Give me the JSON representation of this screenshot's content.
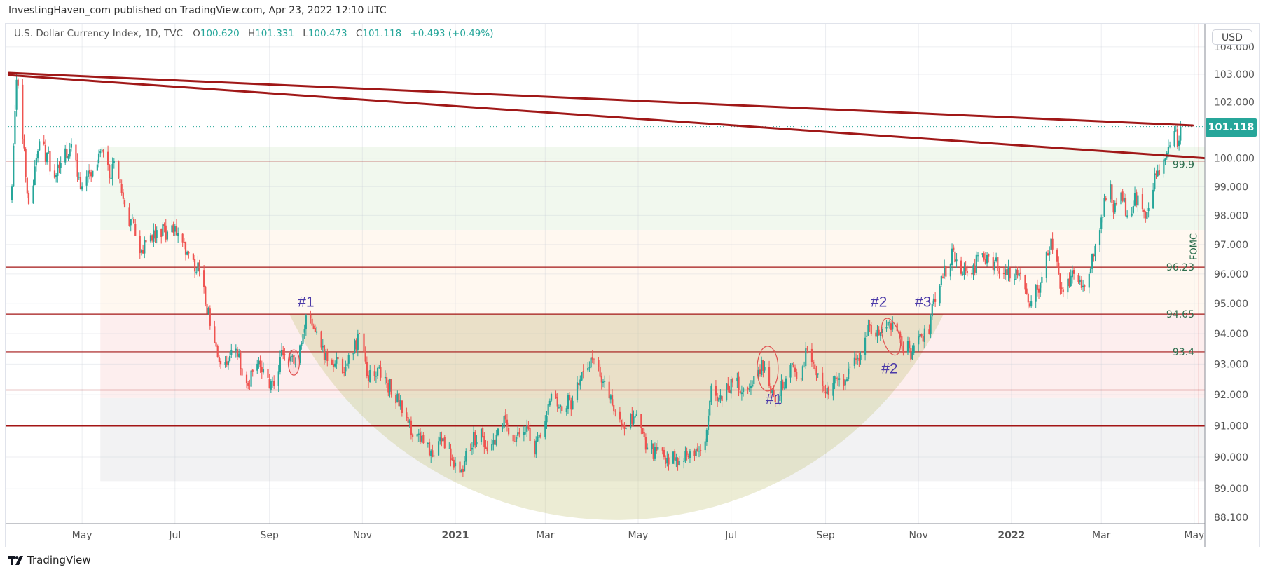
{
  "header": {
    "published": "InvestingHaven_com published on TradingView.com, Apr 23, 2022 12:10 UTC"
  },
  "legend": {
    "symbol": "U.S. Dollar Currency Index, 1D, TVC",
    "o_key": "O",
    "o": "100.620",
    "h_key": "H",
    "h": "101.331",
    "l_key": "L",
    "l": "100.473",
    "c_key": "C",
    "c": "101.118",
    "change": "+0.493 (+0.49%)"
  },
  "price_axis": {
    "currency_button": "USD",
    "last_price_label": "101.118"
  },
  "footer": {
    "brand": "TradingView"
  },
  "colors": {
    "up": "#26a69a",
    "down": "#ef5350",
    "level": "#a31515",
    "trend": "#a01818",
    "annotation": "#4b3aa8",
    "level_text": "#2e6e4e"
  },
  "chart_data": {
    "type": "candlestick",
    "title": "U.S. Dollar Currency Index, 1D, TVC",
    "scale": "log",
    "ylim": [
      88.1,
      104.0
    ],
    "xlim": [
      "2020-03-14",
      "2022-05-10"
    ],
    "y_ticks": [
      {
        "value": 104,
        "label": "104.000"
      },
      {
        "value": 103,
        "label": "103.000"
      },
      {
        "value": 102,
        "label": "102.000"
      },
      {
        "value": 100,
        "label": "100.000"
      },
      {
        "value": 99,
        "label": "99.000"
      },
      {
        "value": 98,
        "label": "98.000"
      },
      {
        "value": 97,
        "label": "97.000"
      },
      {
        "value": 96,
        "label": "96.000"
      },
      {
        "value": 95,
        "label": "95.000"
      },
      {
        "value": 94,
        "label": "94.000"
      },
      {
        "value": 93,
        "label": "93.000"
      },
      {
        "value": 92,
        "label": "92.000"
      },
      {
        "value": 91,
        "label": "91.000"
      },
      {
        "value": 90,
        "label": "90.000"
      },
      {
        "value": 89,
        "label": "89.000"
      },
      {
        "value": 88.1,
        "label": "88.100"
      }
    ],
    "x_ticks": [
      {
        "date": "2020-05-01",
        "label": "May",
        "bold": false
      },
      {
        "date": "2020-07-01",
        "label": "Jul",
        "bold": false
      },
      {
        "date": "2020-09-01",
        "label": "Sep",
        "bold": false
      },
      {
        "date": "2020-11-01",
        "label": "Nov",
        "bold": false
      },
      {
        "date": "2021-01-01",
        "label": "2021",
        "bold": true
      },
      {
        "date": "2021-03-01",
        "label": "Mar",
        "bold": false
      },
      {
        "date": "2021-05-01",
        "label": "May",
        "bold": false
      },
      {
        "date": "2021-07-01",
        "label": "Jul",
        "bold": false
      },
      {
        "date": "2021-09-01",
        "label": "Sep",
        "bold": false
      },
      {
        "date": "2021-11-01",
        "label": "Nov",
        "bold": false
      },
      {
        "date": "2022-01-01",
        "label": "2022",
        "bold": true
      },
      {
        "date": "2022-03-01",
        "label": "Mar",
        "bold": false
      },
      {
        "date": "2022-05-01",
        "label": "May",
        "bold": false
      }
    ],
    "last": {
      "date": "2022-04-22",
      "open": 100.62,
      "high": 101.331,
      "low": 100.473,
      "close": 101.118
    },
    "close_path": [
      [
        "2020-03-16",
        99.0
      ],
      [
        "2020-03-19",
        102.8
      ],
      [
        "2020-03-20",
        102.6
      ],
      [
        "2020-03-27",
        98.4
      ],
      [
        "2020-04-03",
        100.6
      ],
      [
        "2020-04-14",
        99.4
      ],
      [
        "2020-04-24",
        100.5
      ],
      [
        "2020-05-01",
        99.0
      ],
      [
        "2020-05-14",
        100.3
      ],
      [
        "2020-05-19",
        99.3
      ],
      [
        "2020-05-22",
        99.9
      ],
      [
        "2020-05-29",
        98.3
      ],
      [
        "2020-06-09",
        96.8
      ],
      [
        "2020-06-19",
        97.5
      ],
      [
        "2020-06-30",
        97.4
      ],
      [
        "2020-07-10",
        96.7
      ],
      [
        "2020-07-17",
        96.1
      ],
      [
        "2020-07-27",
        93.7
      ],
      [
        "2020-07-31",
        93.0
      ],
      [
        "2020-08-10",
        93.5
      ],
      [
        "2020-08-18",
        92.3
      ],
      [
        "2020-08-25",
        93.1
      ],
      [
        "2020-09-01",
        92.2
      ],
      [
        "2020-09-10",
        93.3
      ],
      [
        "2020-09-18",
        93.0
      ],
      [
        "2020-09-25",
        94.6
      ],
      [
        "2020-10-09",
        93.1
      ],
      [
        "2020-10-21",
        92.9
      ],
      [
        "2020-10-30",
        94.0
      ],
      [
        "2020-11-04",
        92.6
      ],
      [
        "2020-11-12",
        92.9
      ],
      [
        "2020-12-01",
        91.1
      ],
      [
        "2020-12-17",
        90.0
      ],
      [
        "2020-12-23",
        90.5
      ],
      [
        "2021-01-05",
        89.6
      ],
      [
        "2021-01-08",
        90.2
      ],
      [
        "2021-01-18",
        90.9
      ],
      [
        "2021-01-22",
        90.2
      ],
      [
        "2021-02-03",
        91.2
      ],
      [
        "2021-02-09",
        90.5
      ],
      [
        "2021-02-18",
        90.9
      ],
      [
        "2021-02-22",
        90.1
      ],
      [
        "2021-03-04",
        91.8
      ],
      [
        "2021-03-10",
        91.6
      ],
      [
        "2021-03-19",
        91.8
      ],
      [
        "2021-03-31",
        93.2
      ],
      [
        "2021-04-05",
        92.9
      ],
      [
        "2021-04-07",
        92.4
      ],
      [
        "2021-04-19",
        91.2
      ],
      [
        "2021-04-22",
        90.9
      ],
      [
        "2021-04-29",
        91.3
      ],
      [
        "2021-05-07",
        90.3
      ],
      [
        "2021-05-18",
        90.0
      ],
      [
        "2021-05-25",
        89.9
      ],
      [
        "2021-06-01",
        90.2
      ],
      [
        "2021-06-09",
        90.2
      ],
      [
        "2021-06-14",
        90.5
      ],
      [
        "2021-06-17",
        91.8
      ],
      [
        "2021-06-18",
        92.3
      ],
      [
        "2021-06-22",
        91.8
      ],
      [
        "2021-07-02",
        92.4
      ],
      [
        "2021-07-09",
        92.2
      ],
      [
        "2021-07-19",
        92.8
      ],
      [
        "2021-07-23",
        92.9
      ],
      [
        "2021-07-29",
        92.0
      ],
      [
        "2021-08-04",
        92.2
      ],
      [
        "2021-08-11",
        92.9
      ],
      [
        "2021-08-16",
        92.5
      ],
      [
        "2021-08-20",
        93.5
      ],
      [
        "2021-08-27",
        92.7
      ],
      [
        "2021-09-03",
        92.0
      ],
      [
        "2021-09-09",
        92.5
      ],
      [
        "2021-09-15",
        92.5
      ],
      [
        "2021-09-20",
        93.2
      ],
      [
        "2021-09-24",
        93.3
      ],
      [
        "2021-09-29",
        94.3
      ],
      [
        "2021-10-04",
        93.9
      ],
      [
        "2021-10-12",
        94.4
      ],
      [
        "2021-10-21",
        93.6
      ],
      [
        "2021-10-28",
        93.4
      ],
      [
        "2021-11-02",
        94.0
      ],
      [
        "2021-11-08",
        94.0
      ],
      [
        "2021-11-10",
        95.0
      ],
      [
        "2021-11-15",
        95.6
      ],
      [
        "2021-11-17",
        95.9
      ],
      [
        "2021-11-24",
        96.8
      ],
      [
        "2021-11-30",
        96.0
      ],
      [
        "2021-12-07",
        96.3
      ],
      [
        "2021-12-17",
        96.6
      ],
      [
        "2021-12-27",
        96.0
      ],
      [
        "2022-01-07",
        96.0
      ],
      [
        "2022-01-13",
        94.9
      ],
      [
        "2022-01-20",
        95.7
      ],
      [
        "2022-01-27",
        97.2
      ],
      [
        "2022-02-03",
        95.5
      ],
      [
        "2022-02-04",
        95.4
      ],
      [
        "2022-02-11",
        96.0
      ],
      [
        "2022-02-17",
        95.6
      ],
      [
        "2022-02-21",
        96.0
      ],
      [
        "2022-02-24",
        96.6
      ],
      [
        "2022-02-28",
        97.5
      ],
      [
        "2022-03-03",
        98.6
      ],
      [
        "2022-03-07",
        99.1
      ],
      [
        "2022-03-09",
        98.1
      ],
      [
        "2022-03-14",
        98.8
      ],
      [
        "2022-03-18",
        98.0
      ],
      [
        "2022-03-25",
        98.7
      ],
      [
        "2022-03-30",
        97.9
      ],
      [
        "2022-04-06",
        99.4
      ],
      [
        "2022-04-12",
        100.0
      ],
      [
        "2022-04-14",
        100.4
      ],
      [
        "2022-04-19",
        101.0
      ],
      [
        "2022-04-20",
        100.4
      ],
      [
        "2022-04-21",
        100.62
      ],
      [
        "2022-04-22",
        101.118
      ]
    ],
    "levels": [
      {
        "value": 99.9,
        "label": "99.9",
        "thick": false
      },
      {
        "value": 96.23,
        "label": "96.23",
        "thick": false
      },
      {
        "value": 94.65,
        "label": "94.65",
        "thick": false
      },
      {
        "value": 93.4,
        "label": "93.4",
        "thick": false
      },
      {
        "value": 92.15,
        "label": "",
        "thick": false
      },
      {
        "value": 91.0,
        "label": "",
        "thick": true
      }
    ],
    "zones": [
      {
        "from": 100.4,
        "to": 97.5,
        "color": "#f1f8ee",
        "start": "2020-05-13"
      },
      {
        "from": 97.5,
        "to": 94.65,
        "color": "#fff8f0",
        "start": "2020-05-13"
      },
      {
        "from": 94.65,
        "to": 91.89,
        "color": "#fdeeee",
        "start": "2020-05-13"
      },
      {
        "from": 91.89,
        "to": 89.24,
        "color": "#f2f2f3",
        "start": "2020-05-13"
      }
    ],
    "zone_top_line": 100.4,
    "trendlines": [
      {
        "from": [
          "2020-03-14",
          103.05
        ],
        "to": [
          "2022-04-30",
          101.16
        ]
      },
      {
        "from": [
          "2020-03-14",
          102.97
        ],
        "to": [
          "2022-05-08",
          100.0
        ]
      }
    ],
    "last_price_line": 101.118,
    "events": [
      {
        "date": "2022-05-04",
        "label": "FOMC"
      }
    ],
    "annotations": [
      {
        "label": "#1",
        "date": "2020-09-25",
        "price": 94.9
      },
      {
        "label": "#1",
        "date": "2021-07-29",
        "price": 91.7
      },
      {
        "label": "#2",
        "date": "2021-10-06",
        "price": 94.9
      },
      {
        "label": "#3",
        "date": "2021-11-04",
        "price": 94.9
      },
      {
        "label": "#2",
        "date": "2021-10-13",
        "price": 92.7
      }
    ],
    "circles": [
      {
        "date": "2020-09-17",
        "price": 93.05
      },
      {
        "date": "2021-07-25",
        "price": 92.85
      },
      {
        "date": "2021-10-14",
        "price": 93.9
      }
    ]
  }
}
